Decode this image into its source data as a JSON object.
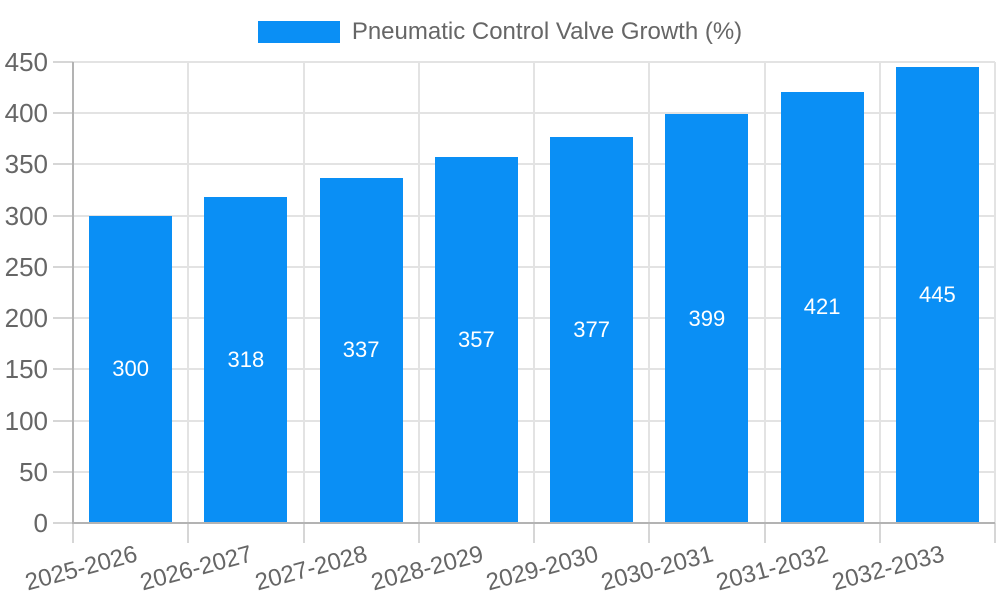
{
  "legend": {
    "label": "Pneumatic Control Valve Growth (%)"
  },
  "chart_data": {
    "type": "bar",
    "title": "Pneumatic Control Valve Growth (%)",
    "xlabel": "",
    "ylabel": "",
    "categories": [
      "2025-2026",
      "2026-2027",
      "2027-2028",
      "2028-2029",
      "2029-2030",
      "2030-2031",
      "2031-2032",
      "2032-2033"
    ],
    "values": [
      300,
      318,
      337,
      357,
      377,
      399,
      421,
      445
    ],
    "bar_value_labels": [
      "300",
      "318",
      "337",
      "357",
      "377",
      "399",
      "421",
      "445"
    ],
    "ylim": [
      0,
      450
    ],
    "ytick_step": 50,
    "ytick_labels": [
      "0",
      "50",
      "100",
      "150",
      "200",
      "250",
      "300",
      "350",
      "400",
      "450"
    ],
    "grid": true,
    "legend_position": "top-center",
    "x_label_rotation_deg": -15,
    "colors": {
      "bar": "#0A8FF5",
      "bar_value_label": "#FFFFFF",
      "axis_line": "#B3B3B3",
      "gridline": "#E3E3E3",
      "tick_mark": "#D6D6D6",
      "tick_text": "#666666",
      "legend_text": "#666666",
      "background": "#FFFFFF"
    }
  }
}
